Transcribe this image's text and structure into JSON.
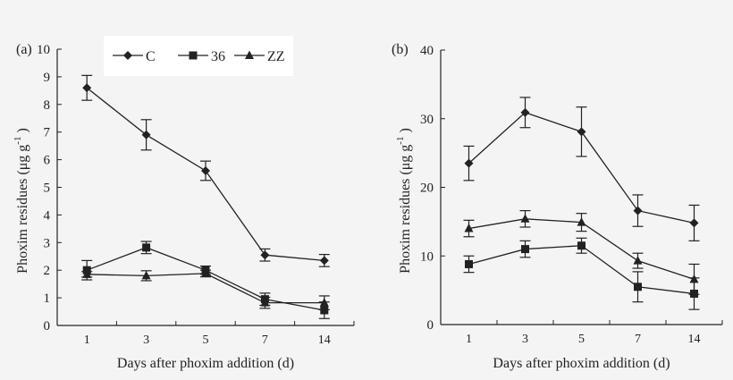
{
  "chart_data": [
    {
      "type": "line",
      "panel_label": "(a)",
      "xlabel": "Days after phoxim addition (d)",
      "ylabel": "Phoxim residues (μg g",
      "ylabel_sup": "-1",
      "ylabel_close": ")",
      "categories": [
        "1",
        "3",
        "5",
        "7",
        "14"
      ],
      "ylim": [
        0,
        10
      ],
      "yticks": [
        "0",
        "1",
        "2",
        "3",
        "4",
        "5",
        "6",
        "7",
        "8",
        "9",
        "10"
      ],
      "legend": "top-center",
      "grid": false,
      "series": [
        {
          "name": "C",
          "marker": "diamond",
          "values": [
            8.6,
            6.9,
            5.6,
            2.55,
            2.35
          ],
          "errors": [
            0.45,
            0.55,
            0.35,
            0.22,
            0.22
          ]
        },
        {
          "name": "36",
          "marker": "square",
          "values": [
            2.0,
            2.82,
            2.0,
            0.95,
            0.55
          ],
          "errors": [
            0.35,
            0.22,
            0.15,
            0.22,
            0.3
          ]
        },
        {
          "name": "ZZ",
          "marker": "triangle",
          "values": [
            1.85,
            1.8,
            1.88,
            0.82,
            0.82
          ],
          "errors": [
            0.1,
            0.18,
            0.12,
            0.2,
            0.25
          ]
        }
      ]
    },
    {
      "type": "line",
      "panel_label": "(b)",
      "xlabel": "Days after phoxim addition (d)",
      "ylabel": "Phoxim residues (μg g",
      "ylabel_sup": "-1",
      "ylabel_close": ")",
      "categories": [
        "1",
        "3",
        "5",
        "7",
        "14"
      ],
      "ylim": [
        0,
        40
      ],
      "yticks": [
        "0",
        "10",
        "20",
        "30",
        "40"
      ],
      "grid": false,
      "series": [
        {
          "marker": "diamond",
          "values": [
            23.5,
            30.9,
            28.1,
            16.6,
            14.8
          ],
          "errors": [
            2.5,
            2.2,
            3.6,
            2.3,
            2.6
          ]
        },
        {
          "marker": "square",
          "values": [
            8.8,
            11.0,
            11.5,
            5.5,
            4.5
          ],
          "errors": [
            1.2,
            1.2,
            1.1,
            2.2,
            2.3
          ]
        },
        {
          "marker": "triangle",
          "values": [
            14.0,
            15.4,
            14.9,
            9.3,
            6.6
          ],
          "errors": [
            1.2,
            1.2,
            1.3,
            1.1,
            2.2
          ]
        }
      ]
    }
  ],
  "colors": {
    "line": "#222222",
    "background": "#f4f4f4",
    "legend_bg": "#ffffff"
  }
}
